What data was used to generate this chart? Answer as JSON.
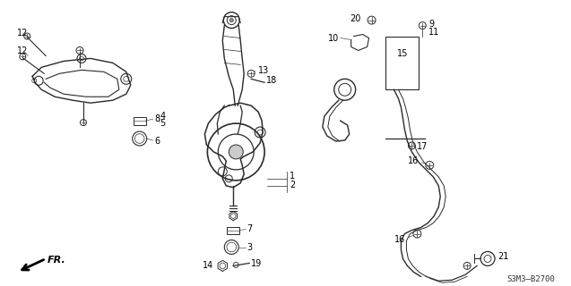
{
  "background_color": "#ffffff",
  "diagram_code": "S3M3–B2700",
  "fr_label": "FR.",
  "line_color": "#2a2a2a",
  "text_color": "#000000",
  "fig_width": 6.37,
  "fig_height": 3.2,
  "dpi": 100
}
